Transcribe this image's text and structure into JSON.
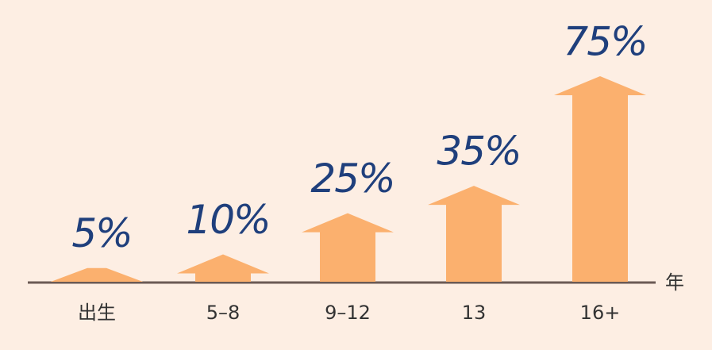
{
  "chart_data": {
    "type": "arrow-bar",
    "categories": [
      "出生",
      "5–8",
      "9–12",
      "13",
      "16+"
    ],
    "values": [
      5,
      10,
      25,
      35,
      75
    ],
    "value_labels": [
      "5%",
      "10%",
      "25%",
      "35%",
      "75%"
    ],
    "x_label": "年",
    "color": "#fbb06e",
    "label_color": "#1f3f7c"
  }
}
